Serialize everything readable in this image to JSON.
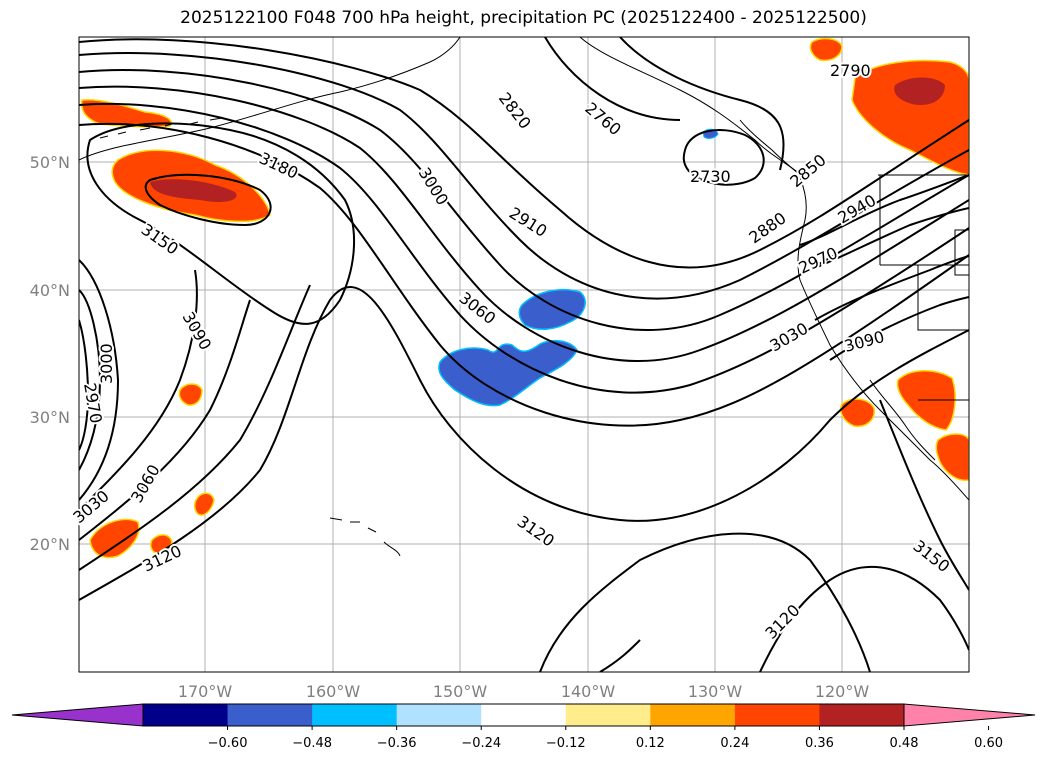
{
  "title": "2025122100 F048 700 hPa height, precipitation PC (2025122400 - 2025122500)",
  "latitude_labels": [
    "50°N",
    "40°N",
    "30°N",
    "20°N"
  ],
  "longitude_labels": [
    "170°W",
    "160°W",
    "150°W",
    "140°W",
    "130°W",
    "120°W"
  ],
  "contour_labels": [
    "3180",
    "3150",
    "3090",
    "3000",
    "2970",
    "3060",
    "3030",
    "3120",
    "3000",
    "2910",
    "2820",
    "2760",
    "2730",
    "2790",
    "2850",
    "2880",
    "2940",
    "2970",
    "3030",
    "3090",
    "3060",
    "3120",
    "3120",
    "3150"
  ],
  "colorbar": {
    "ticks": [
      "−0.60",
      "−0.48",
      "−0.36",
      "−0.24",
      "−0.12",
      "0.12",
      "0.24",
      "0.36",
      "0.48",
      "0.60"
    ],
    "colors": [
      "#9932cc",
      "#00008b",
      "#3a5fcd",
      "#00bfff",
      "#b0e2ff",
      "#ffffff",
      "#ffec8b",
      "#ffa500",
      "#ff4500",
      "#b22222",
      "#ff82ab"
    ]
  }
}
